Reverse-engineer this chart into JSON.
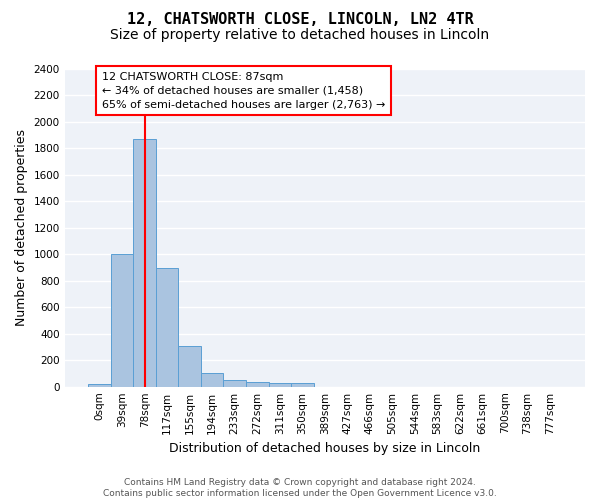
{
  "title": "12, CHATSWORTH CLOSE, LINCOLN, LN2 4TR",
  "subtitle": "Size of property relative to detached houses in Lincoln",
  "xlabel": "Distribution of detached houses by size in Lincoln",
  "ylabel": "Number of detached properties",
  "bar_values": [
    20,
    1000,
    1870,
    900,
    310,
    105,
    48,
    35,
    28,
    25,
    0,
    0,
    0,
    0,
    0,
    0,
    0,
    0,
    0,
    0,
    0
  ],
  "bin_labels": [
    "0sqm",
    "39sqm",
    "78sqm",
    "117sqm",
    "155sqm",
    "194sqm",
    "233sqm",
    "272sqm",
    "311sqm",
    "350sqm",
    "389sqm",
    "427sqm",
    "466sqm",
    "505sqm",
    "544sqm",
    "583sqm",
    "622sqm",
    "661sqm",
    "700sqm",
    "738sqm",
    "777sqm"
  ],
  "bar_color": "#aac4e0",
  "bar_edge_color": "#5a9fd4",
  "red_line_x": 2,
  "annotation_text": "12 CHATSWORTH CLOSE: 87sqm\n← 34% of detached houses are smaller (1,458)\n65% of semi-detached houses are larger (2,763) →",
  "annotation_box_color": "white",
  "annotation_box_edge": "red",
  "ylim": [
    0,
    2400
  ],
  "yticks": [
    0,
    200,
    400,
    600,
    800,
    1000,
    1200,
    1400,
    1600,
    1800,
    2000,
    2200,
    2400
  ],
  "background_color": "#eef2f8",
  "grid_color": "white",
  "footer_text": "Contains HM Land Registry data © Crown copyright and database right 2024.\nContains public sector information licensed under the Open Government Licence v3.0.",
  "title_fontsize": 11,
  "subtitle_fontsize": 10,
  "xlabel_fontsize": 9,
  "ylabel_fontsize": 9,
  "tick_fontsize": 7.5,
  "annotation_fontsize": 8
}
